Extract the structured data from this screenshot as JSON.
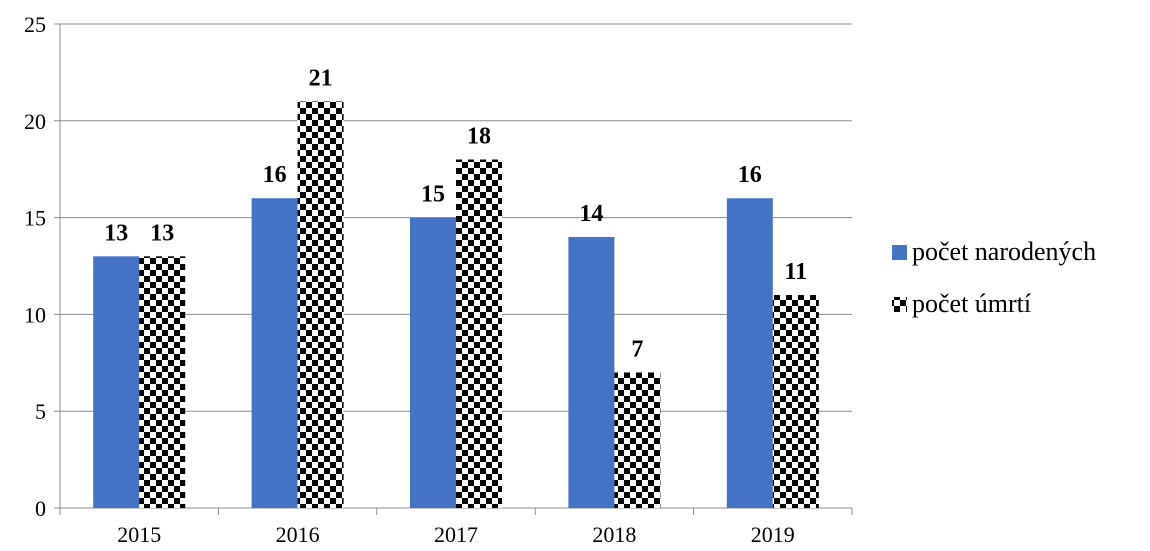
{
  "chart_data": {
    "type": "bar",
    "title": "",
    "xlabel": "",
    "ylabel": "",
    "categories": [
      "2015",
      "2016",
      "2017",
      "2018",
      "2019"
    ],
    "series": [
      {
        "name": "počet narodených",
        "values": [
          13,
          16,
          15,
          14,
          16
        ],
        "color": "#4472C4",
        "fill": "solid"
      },
      {
        "name": "počet úmrtí",
        "values": [
          13,
          21,
          18,
          7,
          11
        ],
        "color": "#000000",
        "fill": "checkerboard"
      }
    ],
    "ylim": [
      0,
      25
    ],
    "yticks": [
      "0",
      "5",
      "10",
      "15",
      "20",
      "25"
    ],
    "grid": "horizontal",
    "legend": "right",
    "data_labels": true
  }
}
